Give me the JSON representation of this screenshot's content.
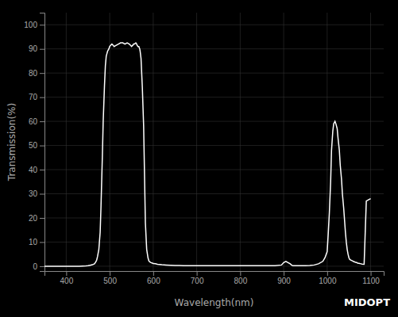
{
  "chart_data": {
    "type": "line",
    "xlabel": "Wavelength(nm)",
    "ylabel": "Transmission(%)",
    "annotations": [
      "MIDOPT"
    ],
    "color": "#ffffff",
    "grid": true,
    "xlim": [
      350,
      1130
    ],
    "ylim": [
      -2,
      105
    ],
    "xticks": [
      400,
      500,
      600,
      700,
      800,
      900,
      1000,
      1100
    ],
    "yticks": [
      0,
      10,
      20,
      30,
      40,
      50,
      60,
      70,
      80,
      90,
      100
    ],
    "x": [
      350,
      370,
      390,
      410,
      430,
      445,
      450,
      455,
      460,
      465,
      468,
      470,
      472,
      475,
      478,
      480,
      483,
      485,
      488,
      490,
      492,
      495,
      498,
      500,
      502,
      505,
      508,
      510,
      515,
      520,
      525,
      530,
      535,
      540,
      545,
      548,
      550,
      553,
      555,
      557,
      560,
      562,
      563,
      565,
      567,
      568,
      569,
      570,
      572,
      575,
      578,
      580,
      582,
      585,
      588,
      590,
      592,
      595,
      598,
      600,
      605,
      610,
      620,
      630,
      640,
      650,
      660,
      670,
      680,
      690,
      700,
      720,
      740,
      760,
      780,
      800,
      820,
      840,
      860,
      880,
      895,
      900,
      905,
      910,
      915,
      918,
      920,
      922,
      925,
      930,
      940,
      950,
      960,
      970,
      980,
      990,
      995,
      1000,
      1002,
      1005,
      1008,
      1010,
      1013,
      1015,
      1018,
      1020,
      1023,
      1025,
      1028,
      1030,
      1033,
      1035,
      1038,
      1040,
      1042,
      1044,
      1046,
      1048,
      1050,
      1052,
      1055,
      1058,
      1060,
      1063,
      1065,
      1068,
      1070,
      1073,
      1075,
      1078,
      1080,
      1085,
      1090,
      1095,
      1100
    ],
    "values": [
      0,
      0,
      0,
      0,
      0,
      0.1,
      0.2,
      0.4,
      0.6,
      1.0,
      1.8,
      2.5,
      4,
      7,
      14,
      25,
      45,
      60,
      75,
      83,
      87,
      89,
      90,
      91,
      91.5,
      92,
      91.5,
      91,
      91.5,
      92,
      92.5,
      92.5,
      92,
      92.5,
      92,
      91.5,
      91,
      91.5,
      92,
      92,
      92.5,
      92,
      91.5,
      91,
      91,
      90.5,
      90,
      89,
      86,
      74,
      58,
      38,
      18,
      7,
      3.5,
      2.2,
      1.8,
      1.5,
      1.3,
      1.1,
      1.0,
      0.8,
      0.6,
      0.5,
      0.4,
      0.3,
      0.3,
      0.2,
      0.2,
      0.2,
      0.2,
      0.2,
      0.2,
      0.2,
      0.2,
      0.2,
      0.2,
      0.2,
      0.2,
      0.2,
      0.5,
      1.5,
      2.0,
      1.5,
      1.0,
      0.5,
      0.3,
      0.2,
      0.2,
      0.2,
      0.2,
      0.2,
      0.3,
      0.5,
      1.0,
      2.0,
      3.5,
      6,
      12,
      22,
      35,
      48,
      56,
      59,
      60,
      59,
      57,
      53,
      48,
      42,
      36,
      30,
      24,
      19,
      14,
      10,
      7,
      5,
      3.5,
      2.8,
      2.5,
      2.2,
      2.0,
      1.8,
      1.6,
      1.5,
      1.3,
      1.2,
      1.1,
      1.0,
      0.9,
      0.8,
      27,
      27.5,
      28
    ]
  }
}
